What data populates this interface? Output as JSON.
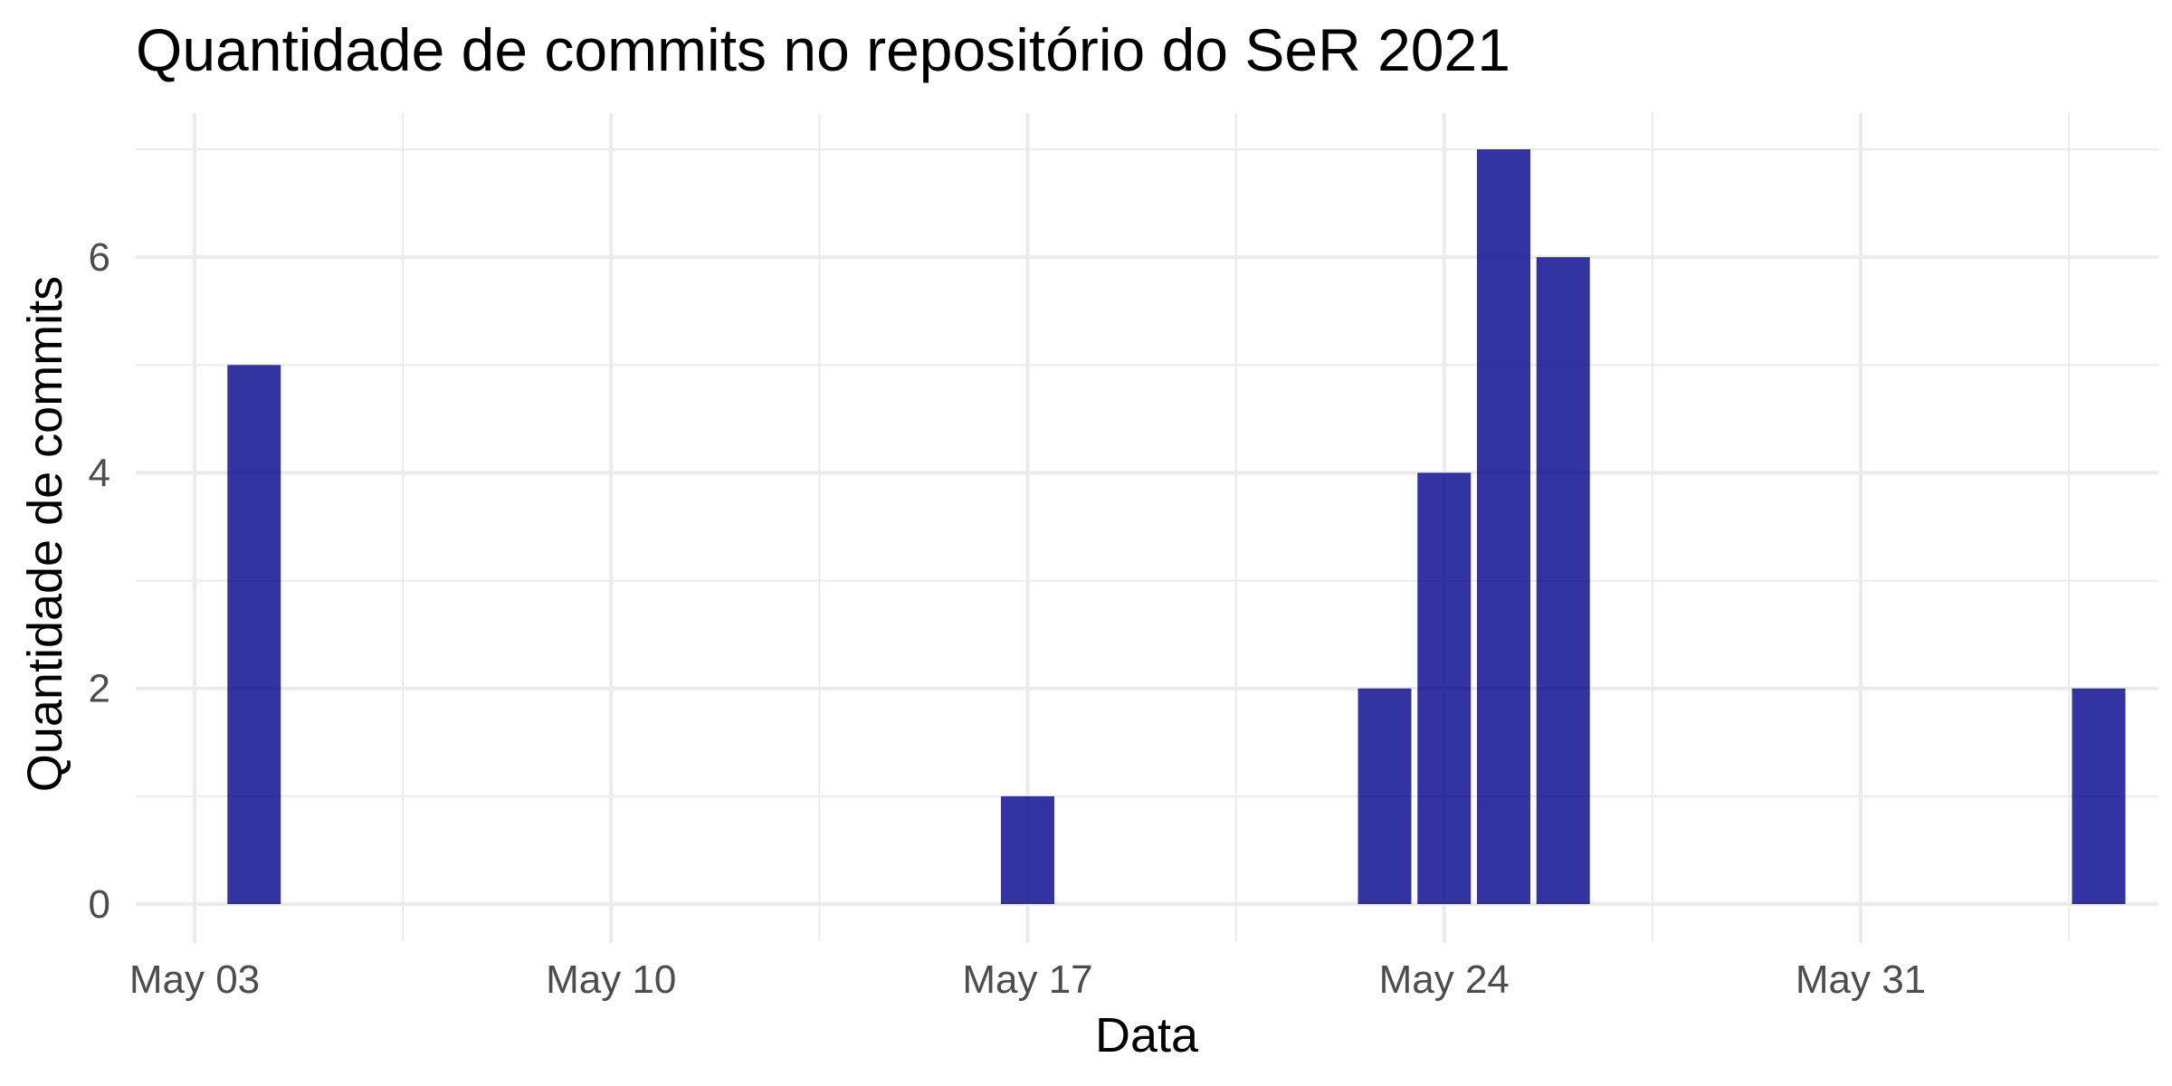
{
  "chart_data": {
    "type": "bar",
    "title": "Quantidade de commits no repositório do SeR 2021",
    "xlabel": "Data",
    "ylabel": "Quantidade de commits",
    "x_type": "date",
    "xlim": [
      "2021-05-02",
      "2021-06-06"
    ],
    "ylim": [
      0,
      7
    ],
    "x_ticks": [
      {
        "date": "2021-05-03",
        "label": "May 03"
      },
      {
        "date": "2021-05-10",
        "label": "May 10"
      },
      {
        "date": "2021-05-17",
        "label": "May 17"
      },
      {
        "date": "2021-05-24",
        "label": "May 24"
      },
      {
        "date": "2021-05-31",
        "label": "May 31"
      }
    ],
    "y_ticks": [
      0,
      2,
      4,
      6
    ],
    "grid": true,
    "legend": "none",
    "bar_color": "#00008b",
    "points": [
      {
        "x": "2021-05-04",
        "y": 5
      },
      {
        "x": "2021-05-17",
        "y": 1
      },
      {
        "x": "2021-05-23",
        "y": 2
      },
      {
        "x": "2021-05-24",
        "y": 4
      },
      {
        "x": "2021-05-25",
        "y": 7
      },
      {
        "x": "2021-05-26",
        "y": 6
      },
      {
        "x": "2021-06-04",
        "y": 2
      }
    ]
  }
}
